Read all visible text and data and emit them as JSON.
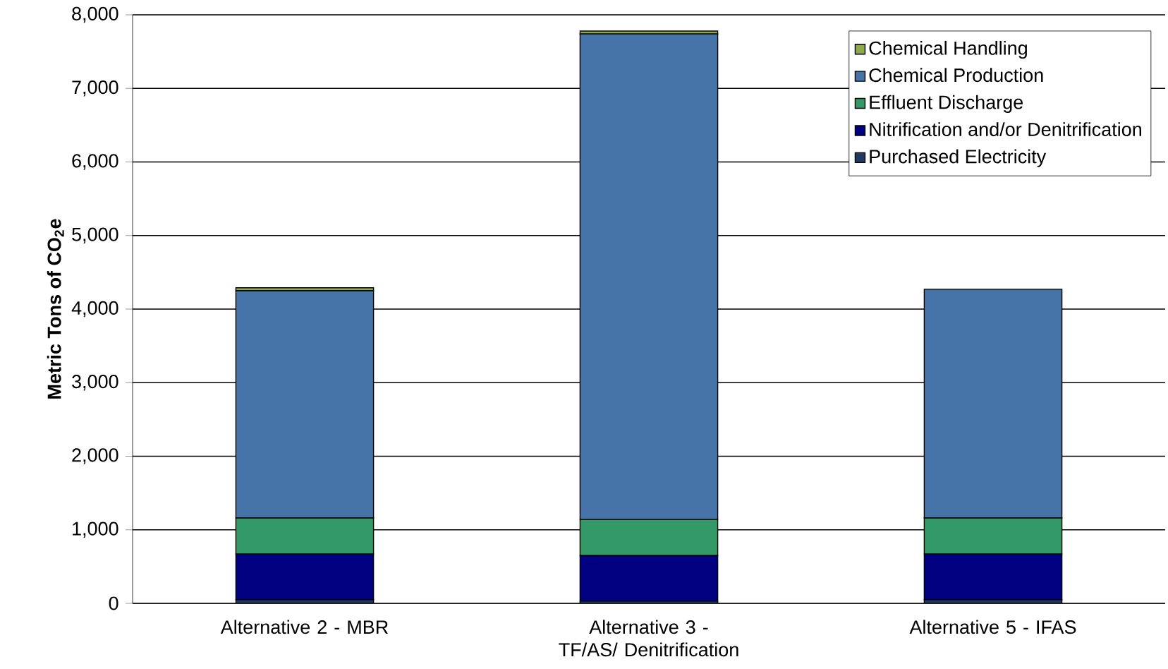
{
  "chart_data": {
    "type": "bar",
    "stacked": true,
    "ylabel": "Metric Tons of CO$_{2}$e",
    "categories": [
      "Alternative 2 - MBR",
      "Alternative 3 - TF/AS/ Denitrification",
      "Alternative 5 - IFAS"
    ],
    "series": [
      {
        "name": "Purchased Electricity",
        "color": "#1f3a60",
        "values": [
          50,
          30,
          50
        ]
      },
      {
        "name": "Nitrification and/or Denitrification",
        "color": "#000080",
        "values": [
          620,
          620,
          620
        ]
      },
      {
        "name": "Effluent Discharge",
        "color": "#339966",
        "values": [
          490,
          490,
          490
        ]
      },
      {
        "name": "Chemical Production",
        "color": "#4674a8",
        "values": [
          3090,
          6600,
          3110
        ]
      },
      {
        "name": "Chemical Handling",
        "color": "#8fa94a",
        "values": [
          40,
          40,
          null
        ]
      }
    ],
    "ylim": [
      0,
      8000
    ],
    "yticks": [
      {
        "value": 0,
        "label": "0"
      },
      {
        "value": 1000,
        "label": "1,000"
      },
      {
        "value": 2000,
        "label": "2,000"
      },
      {
        "value": 3000,
        "label": "3,000"
      },
      {
        "value": 4000,
        "label": "4,000"
      },
      {
        "value": 5000,
        "label": "5,000"
      },
      {
        "value": 6000,
        "label": "6,000"
      },
      {
        "value": 7000,
        "label": "7,000"
      },
      {
        "value": 8000,
        "label": "8,000"
      }
    ],
    "grid": "y",
    "legend": "top right"
  }
}
